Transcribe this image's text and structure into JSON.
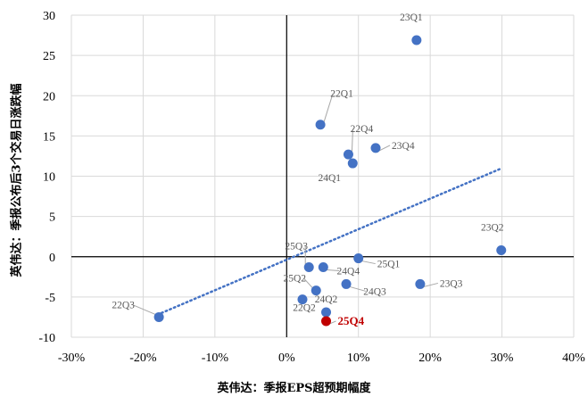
{
  "chart_data": {
    "type": "scatter",
    "xlabel": "英伟达：季报EPS超预期幅度",
    "ylabel": "英伟达：季报公布后3个交易日涨跌幅",
    "xlim": [
      -30,
      40
    ],
    "ylim": [
      -10,
      30
    ],
    "x_ticks": [
      -30,
      -20,
      -10,
      0,
      10,
      20,
      30,
      40
    ],
    "x_tick_labels": [
      "-30%",
      "-20%",
      "-10%",
      "0%",
      "10%",
      "20%",
      "30%",
      "40%"
    ],
    "y_ticks": [
      -10,
      -5,
      0,
      5,
      10,
      15,
      20,
      25,
      30
    ],
    "y_tick_labels": [
      "-10",
      "-5",
      "0",
      "5",
      "10",
      "15",
      "20",
      "25",
      "30"
    ],
    "grid": "both",
    "point_color": "#4472c4",
    "highlight_color": "#c00000",
    "points": [
      {
        "label": "23Q1",
        "x": 18.1,
        "y": 26.9
      },
      {
        "label": "22Q1",
        "x": 4.7,
        "y": 16.4
      },
      {
        "label": "22Q4",
        "x": 8.6,
        "y": 12.7
      },
      {
        "label": "23Q4",
        "x": 12.4,
        "y": 13.5
      },
      {
        "label": "24Q1",
        "x": 9.2,
        "y": 11.6
      },
      {
        "label": "23Q2",
        "x": 29.9,
        "y": 0.8
      },
      {
        "label": "25Q3",
        "x": 3.1,
        "y": -1.3
      },
      {
        "label": "24Q4",
        "x": 5.1,
        "y": -1.3
      },
      {
        "label": "25Q1",
        "x": 10.0,
        "y": -0.2
      },
      {
        "label": "25Q2",
        "x": 4.1,
        "y": -4.2
      },
      {
        "label": "24Q3",
        "x": 8.3,
        "y": -3.4
      },
      {
        "label": "23Q3",
        "x": 18.6,
        "y": -3.4
      },
      {
        "label": "22Q2",
        "x": 2.2,
        "y": -5.3
      },
      {
        "label": "24Q2",
        "x": 5.5,
        "y": -6.9
      },
      {
        "label": "22Q3",
        "x": -17.8,
        "y": -7.5
      },
      {
        "label": "25Q4",
        "x": 5.5,
        "y": -8.0,
        "highlight": true
      }
    ],
    "trendline": {
      "style": "dotted",
      "color": "#4472c4",
      "x": [
        -18,
        30
      ],
      "y": [
        -7.2,
        11.0
      ]
    }
  }
}
